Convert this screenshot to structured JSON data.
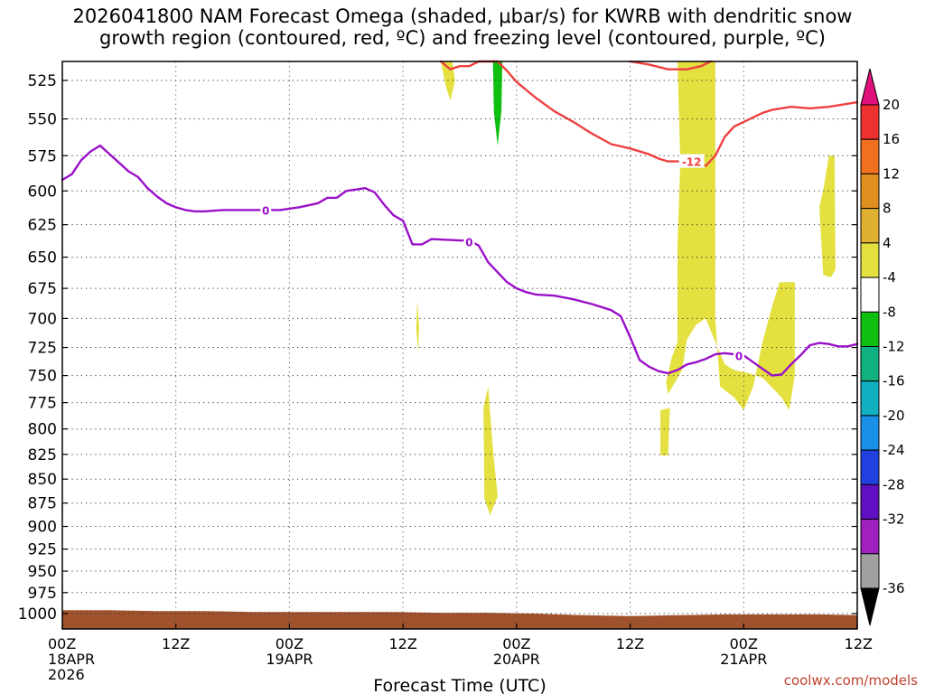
{
  "chart_data": {
    "type": "contour-timeheight",
    "title_line1": "2026041800 NAM Forecast Omega (shaded, μbar/s) for KWRB with dendritic snow",
    "title_line2": "growth region (contoured, red, ºC) and freezing level (contoured, purple, ºC)",
    "xlabel": "Forecast Time (UTC)",
    "credit": "coolwx.com/models",
    "x_range_hours": [
      0,
      84
    ],
    "x_ticks": [
      {
        "h": 0,
        "l1": "00Z",
        "l2": "18APR",
        "l3": "2026"
      },
      {
        "h": 12,
        "l1": "12Z",
        "l2": "",
        "l3": ""
      },
      {
        "h": 24,
        "l1": "00Z",
        "l2": "19APR",
        "l3": ""
      },
      {
        "h": 36,
        "l1": "12Z",
        "l2": "",
        "l3": ""
      },
      {
        "h": 48,
        "l1": "00Z",
        "l2": "20APR",
        "l3": ""
      },
      {
        "h": 60,
        "l1": "12Z",
        "l2": "",
        "l3": ""
      },
      {
        "h": 72,
        "l1": "00Z",
        "l2": "21APR",
        "l3": ""
      },
      {
        "h": 84,
        "l1": "12Z",
        "l2": "",
        "l3": ""
      }
    ],
    "y_range_hpa": [
      1010,
      510
    ],
    "y_ticks": [
      525,
      550,
      575,
      600,
      625,
      650,
      675,
      700,
      725,
      750,
      775,
      800,
      825,
      850,
      875,
      900,
      925,
      950,
      975,
      1000
    ],
    "colorbar": {
      "labels": [
        "20",
        "16",
        "12",
        "8",
        "4",
        "-4",
        "-8",
        "-12",
        "-16",
        "-20",
        "-24",
        "-28",
        "-32",
        "-36"
      ],
      "colors": [
        "#ee3030",
        "#f07020",
        "#e09020",
        "#e0b030",
        "#e4e040",
        "#ffffff",
        "#10c010",
        "#10b080",
        "#10b0c0",
        "#1890e8",
        "#2040e0",
        "#6010c0",
        "#a020c0",
        "#a0a0a0"
      ],
      "top_arrow_color": "#e0107a",
      "bottom_arrow_color": "#000000"
    },
    "freezing_level": {
      "name": "0",
      "color": "#9a10c8",
      "label_text": "0",
      "label_points": [
        [
          21.5,
          614
        ],
        [
          43,
          638
        ],
        [
          71.5,
          732
        ]
      ],
      "points": [
        [
          0,
          592
        ],
        [
          1,
          588
        ],
        [
          2,
          578
        ],
        [
          3,
          572
        ],
        [
          4,
          568
        ],
        [
          5,
          574
        ],
        [
          6,
          580
        ],
        [
          7,
          586
        ],
        [
          8,
          590
        ],
        [
          9,
          598
        ],
        [
          10,
          604
        ],
        [
          11,
          609
        ],
        [
          12,
          612
        ],
        [
          13,
          614
        ],
        [
          14,
          615
        ],
        [
          15,
          615
        ],
        [
          17,
          614
        ],
        [
          19,
          614
        ],
        [
          21,
          614
        ],
        [
          23,
          614
        ],
        [
          25,
          612
        ],
        [
          27,
          609
        ],
        [
          28,
          605
        ],
        [
          29,
          605
        ],
        [
          30,
          600
        ],
        [
          32,
          598
        ],
        [
          33,
          601
        ],
        [
          34,
          610
        ],
        [
          35,
          618
        ],
        [
          36,
          622
        ],
        [
          37,
          640
        ],
        [
          38,
          640
        ],
        [
          39,
          636
        ],
        [
          42,
          637
        ],
        [
          43,
          637
        ],
        [
          44,
          641
        ],
        [
          45,
          654
        ],
        [
          46,
          662
        ],
        [
          47,
          670
        ],
        [
          48,
          675
        ],
        [
          49,
          678
        ],
        [
          50,
          680
        ],
        [
          52,
          681
        ],
        [
          54,
          684
        ],
        [
          56,
          688
        ],
        [
          58,
          693
        ],
        [
          59,
          698
        ],
        [
          60,
          716
        ],
        [
          61,
          736
        ],
        [
          62,
          742
        ],
        [
          63,
          746
        ],
        [
          64,
          748
        ],
        [
          65,
          745
        ],
        [
          66,
          740
        ],
        [
          67,
          738
        ],
        [
          68,
          735
        ],
        [
          69,
          731
        ],
        [
          70,
          730
        ],
        [
          71,
          731
        ],
        [
          72,
          732
        ],
        [
          73,
          738
        ],
        [
          74,
          744
        ],
        [
          75,
          750
        ],
        [
          76,
          749
        ],
        [
          77,
          740
        ],
        [
          78,
          732
        ],
        [
          79,
          723
        ],
        [
          80,
          721
        ],
        [
          81,
          722
        ],
        [
          82,
          724
        ],
        [
          83,
          724
        ],
        [
          84,
          722
        ]
      ]
    },
    "dgz_upper": {
      "name": "-12",
      "color": "#ee4040",
      "label_text": "-12",
      "label_points": [
        [
          66.5,
          579
        ]
      ],
      "points": [
        [
          40,
          510
        ],
        [
          41,
          518
        ],
        [
          42,
          516
        ],
        [
          43,
          516
        ],
        [
          44,
          512
        ],
        [
          45,
          510
        ],
        [
          46,
          513
        ],
        [
          47,
          519
        ],
        [
          48,
          526
        ],
        [
          50,
          536
        ],
        [
          52,
          545
        ],
        [
          54,
          552
        ],
        [
          56,
          560
        ],
        [
          58,
          567
        ],
        [
          60,
          570
        ],
        [
          62,
          574
        ],
        [
          63,
          577
        ],
        [
          64,
          579
        ],
        [
          66,
          579
        ],
        [
          67,
          580
        ],
        [
          68,
          582
        ],
        [
          69,
          575
        ],
        [
          70,
          562
        ],
        [
          71,
          555
        ],
        [
          72,
          552
        ],
        [
          73,
          549
        ],
        [
          74,
          546
        ],
        [
          75,
          544
        ],
        [
          77,
          542
        ],
        [
          79,
          543
        ],
        [
          81,
          542
        ],
        [
          83,
          540
        ],
        [
          84,
          539
        ]
      ]
    },
    "dgz_lower": {
      "name": "-12 (upper segment)",
      "color": "#ee4040",
      "points": [
        [
          60,
          511
        ],
        [
          62,
          515
        ],
        [
          64,
          518
        ],
        [
          66,
          518
        ],
        [
          67.5,
          516
        ],
        [
          68.5,
          510
        ]
      ]
    },
    "omega_regions": [
      {
        "class": "4 to 8",
        "color": "#e4e040",
        "points": [
          [
            40,
            510
          ],
          [
            40.5,
            528
          ],
          [
            41,
            538
          ],
          [
            41.5,
            525
          ],
          [
            41.2,
            510
          ]
        ]
      },
      {
        "class": "-4 to -8",
        "color": "#10c010",
        "points": [
          [
            45.5,
            510
          ],
          [
            45.6,
            545
          ],
          [
            46,
            568
          ],
          [
            46.4,
            545
          ],
          [
            46.5,
            510
          ]
        ]
      },
      {
        "class": "4 to 8",
        "color": "#e4e040",
        "points": [
          [
            37.5,
            685
          ],
          [
            37.7,
            708
          ],
          [
            37.6,
            730
          ],
          [
            37.4,
            708
          ]
        ]
      },
      {
        "class": "4 to 8",
        "color": "#e4e040",
        "points": [
          [
            44.5,
            780
          ],
          [
            45,
            760
          ],
          [
            45.5,
            820
          ],
          [
            46,
            868
          ],
          [
            45.2,
            888
          ],
          [
            44.6,
            870
          ]
        ]
      },
      {
        "class": "4 to 8",
        "color": "#e4e040",
        "points": [
          [
            63.2,
            782
          ],
          [
            64.2,
            780
          ],
          [
            64,
            826
          ],
          [
            63.2,
            826
          ]
        ]
      },
      {
        "class": "4 to 8",
        "color": "#e4e040",
        "points": [
          [
            65,
            510
          ],
          [
            69,
            510
          ],
          [
            69,
            700
          ],
          [
            69.5,
            760
          ],
          [
            71,
            770
          ],
          [
            72,
            782
          ],
          [
            73,
            760
          ],
          [
            74,
            720
          ],
          [
            75,
            690
          ],
          [
            75.8,
            670
          ],
          [
            77.4,
            670
          ],
          [
            77.4,
            750
          ],
          [
            76.8,
            782
          ],
          [
            76,
            770
          ],
          [
            74,
            752
          ],
          [
            72.6,
            748
          ],
          [
            71,
            745
          ],
          [
            70,
            740
          ],
          [
            68.5,
            710
          ],
          [
            68,
            700
          ],
          [
            67,
            705
          ],
          [
            66,
            718
          ],
          [
            65.5,
            745
          ],
          [
            64,
            767
          ],
          [
            63.8,
            756
          ],
          [
            64.4,
            734
          ],
          [
            65,
            720
          ],
          [
            65,
            640
          ],
          [
            65.3,
            580
          ]
        ]
      },
      {
        "class": "4 to 8",
        "color": "#e4e040",
        "points": [
          [
            80,
            612
          ],
          [
            80.5,
            596
          ],
          [
            81,
            575
          ],
          [
            81.6,
            575
          ],
          [
            81.7,
            660
          ],
          [
            81.2,
            666
          ],
          [
            80.4,
            664
          ]
        ]
      }
    ],
    "ground": {
      "color": "#a0522d",
      "top_points": [
        [
          0,
          996
        ],
        [
          5,
          996
        ],
        [
          10,
          997
        ],
        [
          15,
          997
        ],
        [
          20,
          998
        ],
        [
          25,
          998
        ],
        [
          30,
          998
        ],
        [
          35,
          998
        ],
        [
          40,
          999
        ],
        [
          45,
          999
        ],
        [
          50,
          1000
        ],
        [
          55,
          1002
        ],
        [
          60,
          1003
        ],
        [
          65,
          1002
        ],
        [
          70,
          1001
        ],
        [
          75,
          1001
        ],
        [
          80,
          1001
        ],
        [
          84,
          1002
        ]
      ]
    }
  }
}
